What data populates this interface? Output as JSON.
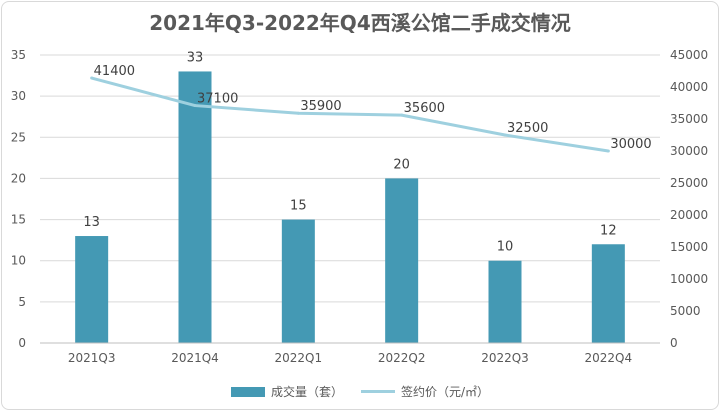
{
  "chart_data": {
    "type": "bar",
    "title": "2021年Q3-2022年Q4西溪公馆二手成交情况",
    "categories": [
      "2021Q3",
      "2021Q4",
      "2022Q1",
      "2022Q2",
      "2022Q3",
      "2022Q4"
    ],
    "series": [
      {
        "name": "成交量（套）",
        "type": "bar",
        "axis": "left",
        "color": "#4499b4",
        "values": [
          13,
          33,
          15,
          20,
          10,
          12
        ]
      },
      {
        "name": "签约价（元/㎡）",
        "type": "line",
        "axis": "right",
        "color": "#9ed0df",
        "values": [
          41400,
          37100,
          35900,
          35600,
          32500,
          30000
        ]
      }
    ],
    "ylim_left": [
      0,
      35
    ],
    "yticks_left": [
      "0",
      "5",
      "10",
      "15",
      "20",
      "25",
      "30",
      "35"
    ],
    "ylim_right": [
      0,
      45000
    ],
    "yticks_right": [
      "0",
      "5000",
      "10000",
      "15000",
      "20000",
      "25000",
      "30000",
      "35000",
      "40000",
      "45000"
    ],
    "grid": true,
    "legend_position": "bottom"
  }
}
